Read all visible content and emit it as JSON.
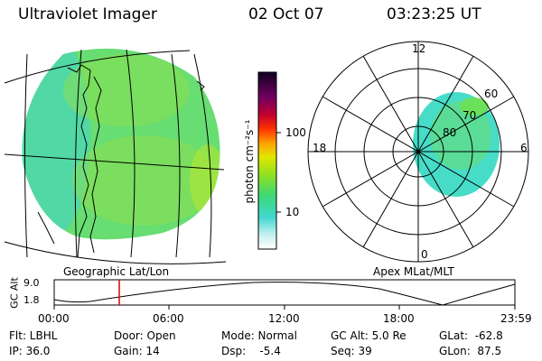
{
  "header": {
    "instrument": "Ultraviolet Imager",
    "date": "02 Oct 07",
    "time": "03:23:25 UT"
  },
  "geo_panel": {
    "caption": "Geographic Lat/Lon",
    "image_color": "#4ee08a"
  },
  "colorbar": {
    "unit_label": "photon cm⁻²s⁻¹",
    "ticks": [
      "100",
      "10"
    ],
    "scale": "log"
  },
  "polar_panel": {
    "caption": "Apex MLat/MLT",
    "mlt_labels": [
      "12",
      "18",
      "6",
      "0"
    ],
    "mlat_labels": [
      "60",
      "70",
      "80"
    ]
  },
  "altitude_plot": {
    "ylabel": "GC Alt",
    "yticks": [
      "9.0",
      "1.8"
    ],
    "xticks": [
      "00:00",
      "06:00",
      "12:00",
      "18:00",
      "23:59"
    ],
    "marker_color": "#e00000"
  },
  "info": {
    "filter": "Flt: LBHL",
    "door": "Door: Open",
    "mode": "Mode: Normal",
    "gc_alt": "GC Alt: 5.0 Re",
    "glat": "GLat:  -62.8",
    "ip": "IP: 36.0",
    "gain": "Gain: 14",
    "dsp": "Dsp:    -5.4",
    "seq": "Seq: 39",
    "glon": "GLon:  87.5"
  }
}
